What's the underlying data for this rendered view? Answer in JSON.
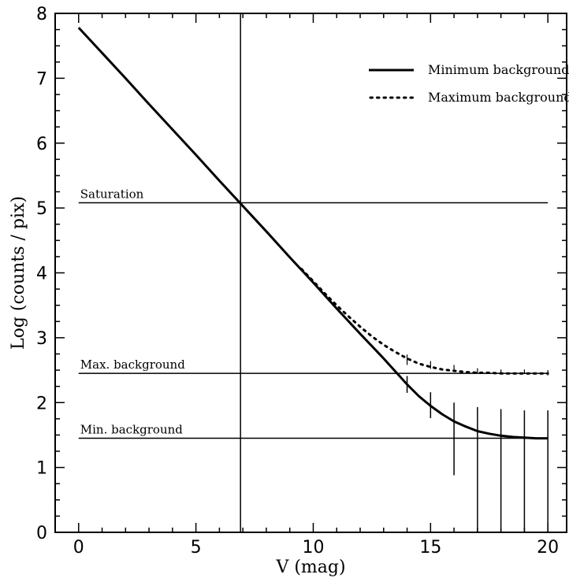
{
  "chart_data": {
    "type": "line",
    "xlabel": "V (mag)",
    "ylabel": "Log (counts / pix)",
    "xlim": [
      -1,
      20.8
    ],
    "ylim": [
      0,
      8
    ],
    "xticks": [
      0,
      5,
      10,
      15,
      20
    ],
    "yticks": [
      0,
      1,
      2,
      3,
      4,
      5,
      6,
      7,
      8
    ],
    "x_minor_step": 1,
    "y_minor_step": 0.25,
    "grid": false,
    "legend_position": "top-right",
    "colors": {
      "line": "#000000",
      "background": "#ffffff"
    },
    "series": [
      {
        "name": "Minimum background",
        "style": "solid",
        "x": [
          0,
          1,
          2,
          3,
          4,
          5,
          6,
          7,
          8,
          9,
          10,
          11,
          12,
          13,
          13.5,
          14,
          14.5,
          15,
          15.5,
          16,
          16.5,
          17,
          17.5,
          18,
          18.5,
          19,
          19.5,
          20
        ],
        "y": [
          7.78,
          7.39,
          7.0,
          6.6,
          6.21,
          5.82,
          5.42,
          5.03,
          4.64,
          4.24,
          3.85,
          3.45,
          3.06,
          2.68,
          2.48,
          2.28,
          2.1,
          1.95,
          1.82,
          1.71,
          1.63,
          1.56,
          1.52,
          1.49,
          1.47,
          1.46,
          1.45,
          1.45
        ]
      },
      {
        "name": "Maximum background",
        "style": "dotted",
        "x": [
          9.5,
          10,
          10.5,
          11,
          11.5,
          12,
          12.5,
          13,
          13.5,
          14,
          14.5,
          15,
          15.5,
          16,
          16.5,
          17,
          17.5,
          18,
          18.5,
          19,
          19.5,
          20
        ],
        "y": [
          4.06,
          3.87,
          3.68,
          3.5,
          3.33,
          3.17,
          3.02,
          2.89,
          2.78,
          2.68,
          2.6,
          2.55,
          2.51,
          2.49,
          2.47,
          2.46,
          2.46,
          2.45,
          2.45,
          2.45,
          2.45,
          2.45
        ]
      }
    ],
    "error_bars": [
      {
        "x": 14,
        "low": 2.15,
        "high": 2.41
      },
      {
        "x": 15,
        "low": 1.76,
        "high": 2.16
      },
      {
        "x": 16,
        "low": 0.88,
        "high": 2.0
      },
      {
        "x": 17,
        "low": 0.0,
        "high": 1.93
      },
      {
        "x": 18,
        "low": 0.0,
        "high": 1.9
      },
      {
        "x": 19,
        "low": 0.0,
        "high": 1.88
      },
      {
        "x": 20,
        "low": 0.0,
        "high": 1.88
      }
    ],
    "small_ticks_dotted": [
      {
        "x": 14,
        "low": 2.58,
        "high": 2.74
      },
      {
        "x": 15,
        "low": 2.52,
        "high": 2.64
      },
      {
        "x": 16,
        "low": 2.48,
        "high": 2.58
      },
      {
        "x": 17,
        "low": 2.45,
        "high": 2.53
      },
      {
        "x": 18,
        "low": 2.44,
        "high": 2.51
      },
      {
        "x": 19,
        "low": 2.44,
        "high": 2.51
      },
      {
        "x": 20,
        "low": 2.42,
        "high": 2.5
      }
    ],
    "hlines": [
      {
        "label": "Saturation",
        "y": 5.08,
        "x_start": 0,
        "x_end": 20
      },
      {
        "label": "Max. background",
        "y": 2.45,
        "x_start": 0,
        "x_end": 20
      },
      {
        "label": "Min. background",
        "y": 1.45,
        "x_start": 0,
        "x_end": 20
      }
    ],
    "vline": {
      "x": 6.9
    }
  }
}
